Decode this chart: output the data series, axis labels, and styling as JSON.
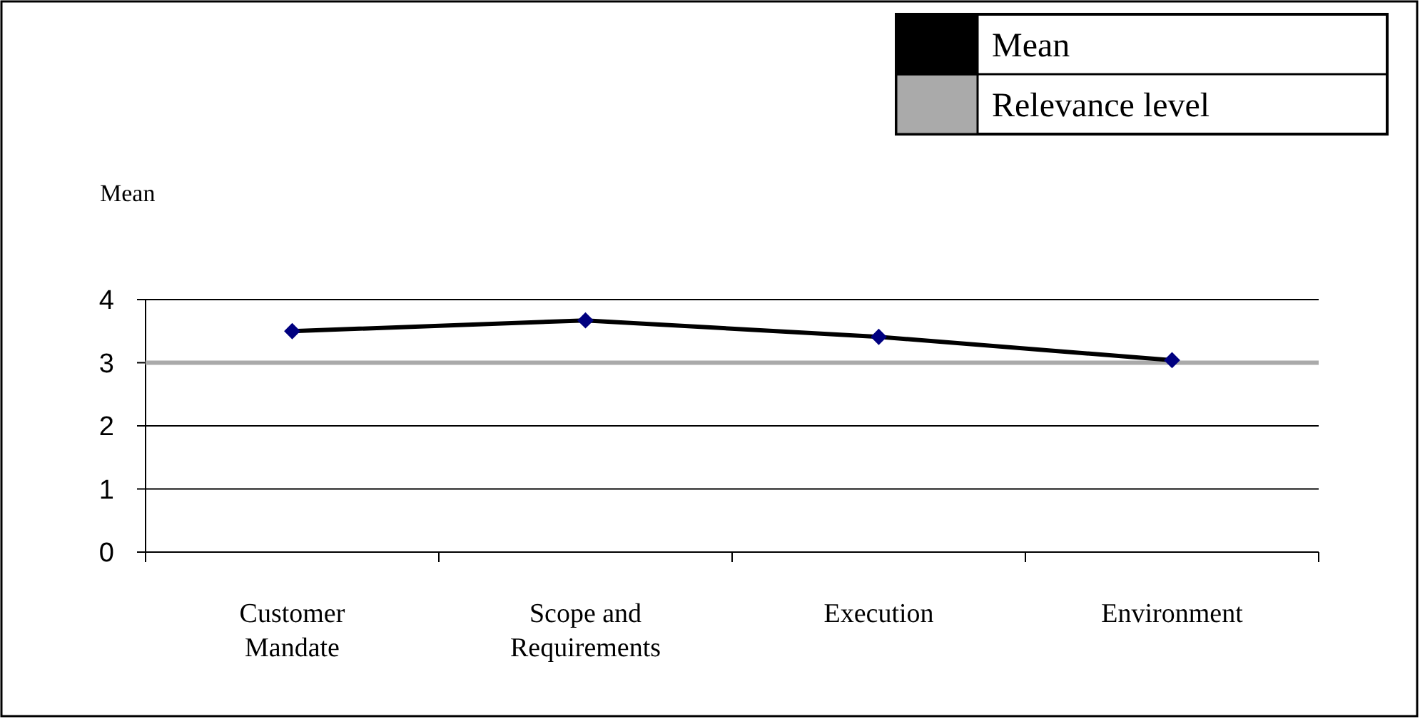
{
  "chart_data": {
    "type": "line",
    "ylabel": "Mean",
    "categories": [
      "Customer Mandate",
      "Scope and Requirements",
      "Execution",
      "Environment"
    ],
    "series": [
      {
        "name": "Mean",
        "color": "#000000",
        "values": [
          3.5,
          3.67,
          3.41,
          3.04
        ]
      }
    ],
    "ref_lines": [
      {
        "axis": "y",
        "value": 3,
        "label": "Relevance level",
        "color": "#aaaaaa"
      }
    ],
    "ylim": [
      0,
      4
    ],
    "yticks": [
      0,
      1,
      2,
      3,
      4
    ],
    "grid": "y",
    "legend": "top right",
    "marker": "diamond",
    "line_style": "solid"
  }
}
